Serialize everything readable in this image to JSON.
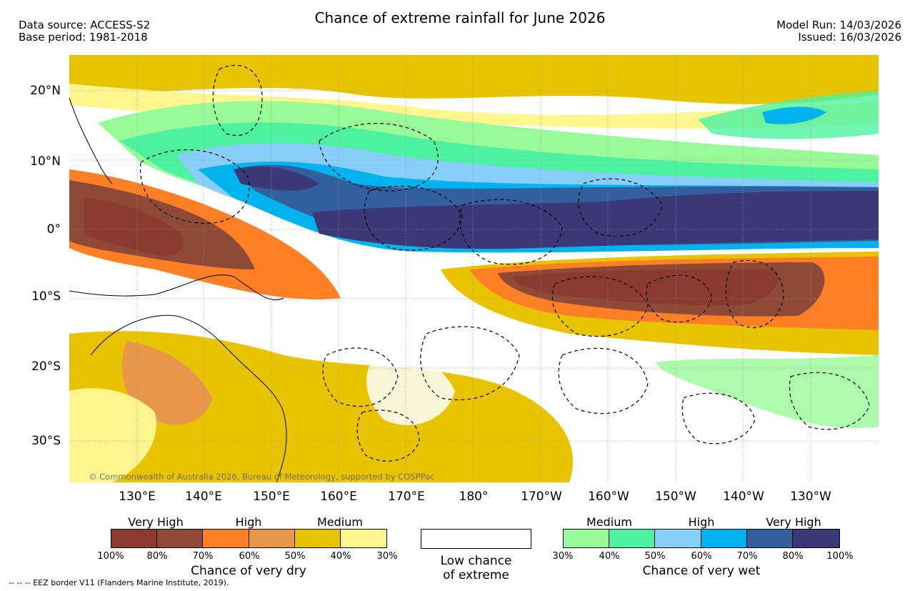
{
  "header": {
    "data_source": "Data source: ACCESS-S2",
    "base_period": "Base period: 1981-2018",
    "title": "Chance of extreme rainfall for June 2026",
    "model_run": "Model Run: 14/03/2026",
    "issued": "Issued: 16/03/2026"
  },
  "map": {
    "copyright": "© Commonwealth of Australia 2026, Bureau of Meteorology, supported by COSPPac",
    "lat_labels": [
      "20°N",
      "10°N",
      "0°",
      "10°S",
      "20°S",
      "30°S"
    ],
    "lon_labels": [
      "130°E",
      "140°E",
      "150°E",
      "160°E",
      "170°E",
      "180°",
      "170°W",
      "160°W",
      "150°W",
      "140°W",
      "130°W"
    ]
  },
  "legend_dry": {
    "headings": [
      "Very High",
      "High",
      "Medium"
    ],
    "colors": [
      "#8b3a2f",
      "#8f4a37",
      "#ff7f24",
      "#e8974a",
      "#e8c400",
      "#fff68f"
    ],
    "ticks": [
      "100%",
      "80%",
      "70%",
      "60%",
      "50%",
      "40%",
      "30%"
    ],
    "caption": "Chance of very dry"
  },
  "legend_low": {
    "line1": "Low chance",
    "line2": "of extreme"
  },
  "legend_wet": {
    "headings": [
      "Medium",
      "High",
      "Very High"
    ],
    "colors": [
      "#98fb98",
      "#4cf2a0",
      "#87cefa",
      "#00b2ee",
      "#345f9f",
      "#3b3878"
    ],
    "ticks": [
      "30%",
      "40%",
      "50%",
      "60%",
      "70%",
      "80%",
      "100%"
    ],
    "caption": "Chance of very wet"
  },
  "footer": {
    "eez_note": "-- -- -- EEZ border V11 (Flanders Marine Institute, 2019)."
  }
}
